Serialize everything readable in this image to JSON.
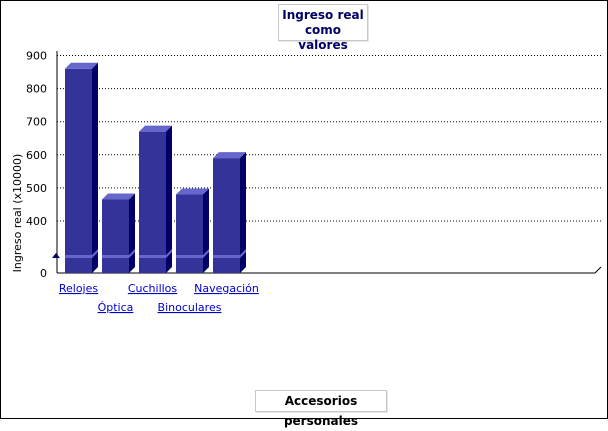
{
  "chart_data": {
    "type": "bar",
    "title_lines": [
      "Ingreso real",
      "como valores"
    ],
    "xlabel": "Accesorios personales",
    "ylabel": "Ingreso real (x10000)",
    "categories": [
      "Relojes",
      "Óptica",
      "Cuchillos",
      "Binoculares",
      "Navegación"
    ],
    "values": [
      860,
      465,
      670,
      480,
      590
    ],
    "y_ticks": [
      0,
      400,
      500,
      600,
      700,
      800,
      900
    ],
    "axis_break": true,
    "grid": true,
    "colors": {
      "bar_front": "#333399",
      "bar_top": "#6666cc",
      "bar_side": "#000066",
      "link": "#0000cc"
    }
  }
}
